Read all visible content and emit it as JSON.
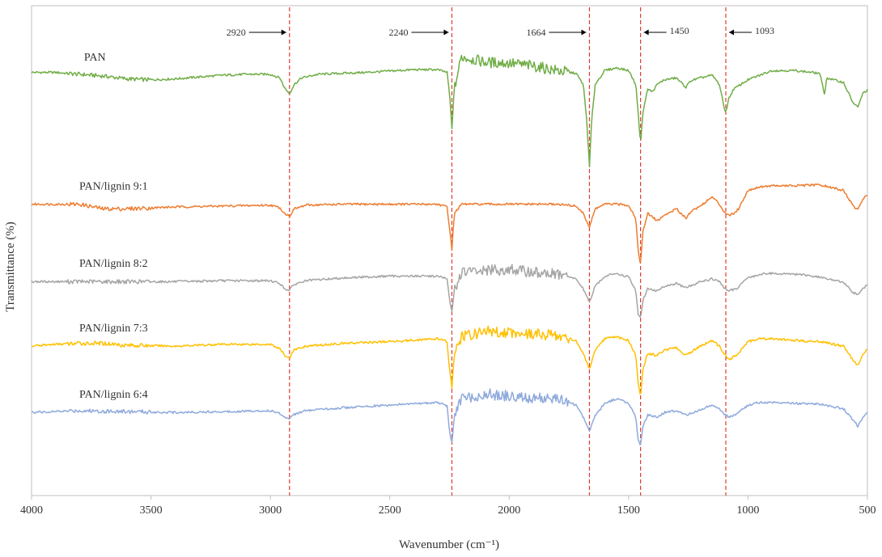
{
  "chart_data": {
    "type": "line",
    "title": "",
    "xlabel": "Wavenumber (cm⁻¹)",
    "ylabel": "Transmittance (%)",
    "xlim": [
      4000,
      500
    ],
    "x_reversed": true,
    "x_ticks": [
      4000,
      3500,
      3000,
      2500,
      2000,
      1500,
      1000,
      500
    ],
    "grid": false,
    "y_ticks_shown": false,
    "series": [
      {
        "name": "PAN",
        "color": "#70ad47",
        "label_x": 3780,
        "baseline": 14.0,
        "points": [
          [
            4000,
            0.3
          ],
          [
            3900,
            0.3
          ],
          [
            3800,
            0.1
          ],
          [
            3700,
            -0.1
          ],
          [
            3600,
            -0.4
          ],
          [
            3500,
            -0.5
          ],
          [
            3400,
            -0.4
          ],
          [
            3300,
            -0.2
          ],
          [
            3200,
            0
          ],
          [
            3100,
            0.1
          ],
          [
            3000,
            0.1
          ],
          [
            2960,
            -0.3
          ],
          [
            2940,
            -1.4
          ],
          [
            2920,
            -2.0
          ],
          [
            2900,
            -1.0
          ],
          [
            2870,
            -0.3
          ],
          [
            2800,
            0.1
          ],
          [
            2600,
            0.3
          ],
          [
            2400,
            0.6
          ],
          [
            2300,
            0.6
          ],
          [
            2260,
            0.3
          ],
          [
            2250,
            -2.0
          ],
          [
            2240,
            -5.8
          ],
          [
            2230,
            -1.5
          ],
          [
            2200,
            2.0
          ],
          [
            2100,
            1.4
          ],
          [
            2000,
            1.3
          ],
          [
            1900,
            1.0
          ],
          [
            1800,
            0.5
          ],
          [
            1720,
            0.2
          ],
          [
            1690,
            -1.0
          ],
          [
            1675,
            -5.0
          ],
          [
            1664,
            -10.0
          ],
          [
            1655,
            -5.0
          ],
          [
            1640,
            -1.0
          ],
          [
            1600,
            0.5
          ],
          [
            1550,
            0.8
          ],
          [
            1500,
            0.5
          ],
          [
            1470,
            -1.0
          ],
          [
            1460,
            -4.0
          ],
          [
            1450,
            -7.5
          ],
          [
            1440,
            -4.0
          ],
          [
            1420,
            -1.5
          ],
          [
            1400,
            -1.8
          ],
          [
            1380,
            -1.0
          ],
          [
            1350,
            -0.5
          ],
          [
            1300,
            -0.3
          ],
          [
            1260,
            -1.3
          ],
          [
            1240,
            -0.6
          ],
          [
            1200,
            -0.3
          ],
          [
            1150,
            0
          ],
          [
            1120,
            -1.0
          ],
          [
            1100,
            -3.5
          ],
          [
            1093,
            -4.0
          ],
          [
            1080,
            -2.5
          ],
          [
            1060,
            -1.5
          ],
          [
            1000,
            -0.5
          ],
          [
            950,
            0
          ],
          [
            900,
            0.5
          ],
          [
            800,
            0.5
          ],
          [
            700,
            0.2
          ],
          [
            680,
            -2.0
          ],
          [
            670,
            -0.3
          ],
          [
            600,
            -0.8
          ],
          [
            560,
            -3.0
          ],
          [
            540,
            -3.5
          ],
          [
            520,
            -2.0
          ],
          [
            500,
            -1.6
          ]
        ]
      },
      {
        "name": "PAN/lignin 9:1",
        "color": "#ed7d31",
        "label_x": 3800,
        "baseline": 0.0,
        "points": [
          [
            4000,
            0
          ],
          [
            3900,
            0
          ],
          [
            3800,
            0
          ],
          [
            3700,
            -0.5
          ],
          [
            3600,
            -0.5
          ],
          [
            3500,
            -0.4
          ],
          [
            3400,
            -0.3
          ],
          [
            3200,
            -0.2
          ],
          [
            3000,
            -0.1
          ],
          [
            2960,
            -0.4
          ],
          [
            2940,
            -1.0
          ],
          [
            2920,
            -1.3
          ],
          [
            2900,
            -0.5
          ],
          [
            2850,
            -0.1
          ],
          [
            2700,
            0
          ],
          [
            2500,
            0
          ],
          [
            2300,
            0
          ],
          [
            2260,
            -0.3
          ],
          [
            2250,
            -2.5
          ],
          [
            2240,
            -5.0
          ],
          [
            2230,
            -1.0
          ],
          [
            2200,
            0
          ],
          [
            2000,
            0
          ],
          [
            1800,
            0
          ],
          [
            1720,
            -0.2
          ],
          [
            1690,
            -1.0
          ],
          [
            1664,
            -2.5
          ],
          [
            1640,
            -0.5
          ],
          [
            1600,
            0
          ],
          [
            1550,
            0
          ],
          [
            1500,
            -0.1
          ],
          [
            1470,
            -1.5
          ],
          [
            1460,
            -5.0
          ],
          [
            1450,
            -6.5
          ],
          [
            1440,
            -3.0
          ],
          [
            1420,
            -1.0
          ],
          [
            1380,
            -1.8
          ],
          [
            1350,
            -1.2
          ],
          [
            1300,
            -0.5
          ],
          [
            1260,
            -1.5
          ],
          [
            1240,
            -0.8
          ],
          [
            1200,
            -0.2
          ],
          [
            1150,
            0.8
          ],
          [
            1120,
            0
          ],
          [
            1100,
            -0.8
          ],
          [
            1080,
            -1.2
          ],
          [
            1060,
            -1.0
          ],
          [
            1040,
            -0.5
          ],
          [
            1000,
            1.5
          ],
          [
            950,
            1.9
          ],
          [
            900,
            2.0
          ],
          [
            800,
            2.0
          ],
          [
            700,
            2.1
          ],
          [
            600,
            1.5
          ],
          [
            560,
            -0.2
          ],
          [
            540,
            -0.6
          ],
          [
            520,
            0.5
          ],
          [
            500,
            1.0
          ]
        ]
      },
      {
        "name": "PAN/lignin 8:2",
        "color": "#a5a5a5",
        "label_x": 3800,
        "baseline": -8.4,
        "points": [
          [
            4000,
            0
          ],
          [
            3800,
            0
          ],
          [
            3600,
            0
          ],
          [
            3400,
            0
          ],
          [
            3200,
            0.1
          ],
          [
            3000,
            0.1
          ],
          [
            2960,
            -0.2
          ],
          [
            2940,
            -0.8
          ],
          [
            2920,
            -0.9
          ],
          [
            2900,
            -0.3
          ],
          [
            2850,
            0.1
          ],
          [
            2700,
            0.4
          ],
          [
            2500,
            0.6
          ],
          [
            2300,
            0.6
          ],
          [
            2260,
            0.3
          ],
          [
            2250,
            -2.0
          ],
          [
            2240,
            -3.3
          ],
          [
            2230,
            -1.0
          ],
          [
            2200,
            1.0
          ],
          [
            2100,
            1.2
          ],
          [
            2000,
            1.3
          ],
          [
            1900,
            1.0
          ],
          [
            1800,
            0.8
          ],
          [
            1720,
            0.3
          ],
          [
            1690,
            -0.8
          ],
          [
            1664,
            -2.2
          ],
          [
            1640,
            -0.5
          ],
          [
            1600,
            0.6
          ],
          [
            1550,
            0.9
          ],
          [
            1500,
            0.5
          ],
          [
            1470,
            -1.0
          ],
          [
            1460,
            -3.5
          ],
          [
            1450,
            -4.0
          ],
          [
            1440,
            -2.0
          ],
          [
            1420,
            -0.8
          ],
          [
            1380,
            -1.0
          ],
          [
            1350,
            -0.5
          ],
          [
            1300,
            -0.2
          ],
          [
            1260,
            -0.7
          ],
          [
            1200,
            0
          ],
          [
            1150,
            0.3
          ],
          [
            1120,
            0
          ],
          [
            1100,
            -0.7
          ],
          [
            1080,
            -1.0
          ],
          [
            1050,
            -0.8
          ],
          [
            1000,
            0.4
          ],
          [
            950,
            0.8
          ],
          [
            900,
            0.9
          ],
          [
            800,
            0.8
          ],
          [
            700,
            0.5
          ],
          [
            600,
            -0.1
          ],
          [
            560,
            -1.2
          ],
          [
            540,
            -1.4
          ],
          [
            520,
            -0.8
          ],
          [
            500,
            -0.4
          ]
        ]
      },
      {
        "name": "PAN/lignin 7:3",
        "color": "#ffc000",
        "label_x": 3800,
        "baseline": -15.4,
        "points": [
          [
            4000,
            0
          ],
          [
            3900,
            0.2
          ],
          [
            3800,
            0.3
          ],
          [
            3700,
            0.3
          ],
          [
            3600,
            0.1
          ],
          [
            3400,
            0
          ],
          [
            3200,
            0.2
          ],
          [
            3000,
            0.2
          ],
          [
            2960,
            -0.3
          ],
          [
            2940,
            -1.0
          ],
          [
            2920,
            -1.3
          ],
          [
            2900,
            -0.4
          ],
          [
            2850,
            0
          ],
          [
            2700,
            0.3
          ],
          [
            2500,
            0.5
          ],
          [
            2300,
            0.8
          ],
          [
            2260,
            0.5
          ],
          [
            2250,
            -2.5
          ],
          [
            2240,
            -4.5
          ],
          [
            2230,
            -1.0
          ],
          [
            2200,
            1.0
          ],
          [
            2100,
            1.6
          ],
          [
            2000,
            1.5
          ],
          [
            1900,
            1.3
          ],
          [
            1800,
            1.2
          ],
          [
            1720,
            0.6
          ],
          [
            1690,
            -0.8
          ],
          [
            1664,
            -2.5
          ],
          [
            1640,
            -0.5
          ],
          [
            1600,
            0.8
          ],
          [
            1550,
            1.0
          ],
          [
            1500,
            0.6
          ],
          [
            1470,
            -1.0
          ],
          [
            1460,
            -4.0
          ],
          [
            1450,
            -5.6
          ],
          [
            1440,
            -2.5
          ],
          [
            1420,
            -0.8
          ],
          [
            1380,
            -1.0
          ],
          [
            1350,
            -0.4
          ],
          [
            1300,
            -0.2
          ],
          [
            1260,
            -1.0
          ],
          [
            1200,
            0
          ],
          [
            1150,
            0.6
          ],
          [
            1120,
            0
          ],
          [
            1100,
            -0.8
          ],
          [
            1080,
            -1.5
          ],
          [
            1050,
            -1.0
          ],
          [
            1000,
            0.5
          ],
          [
            950,
            0.8
          ],
          [
            900,
            0.8
          ],
          [
            800,
            0.6
          ],
          [
            700,
            0.5
          ],
          [
            600,
            0
          ],
          [
            560,
            -1.5
          ],
          [
            540,
            -2.1
          ],
          [
            520,
            -1.0
          ],
          [
            500,
            -0.3
          ]
        ]
      },
      {
        "name": "PAN/lignin 6:4",
        "color": "#8faadc",
        "label_x": 3800,
        "baseline": -22.6,
        "points": [
          [
            4000,
            0
          ],
          [
            3800,
            0.2
          ],
          [
            3600,
            0.1
          ],
          [
            3400,
            0
          ],
          [
            3200,
            0.1
          ],
          [
            3000,
            0.2
          ],
          [
            2960,
            -0.1
          ],
          [
            2940,
            -0.5
          ],
          [
            2920,
            -0.6
          ],
          [
            2900,
            -0.2
          ],
          [
            2850,
            0.2
          ],
          [
            2700,
            0.5
          ],
          [
            2500,
            0.8
          ],
          [
            2300,
            1.1
          ],
          [
            2260,
            0.7
          ],
          [
            2250,
            -2.0
          ],
          [
            2240,
            -3.3
          ],
          [
            2230,
            -0.5
          ],
          [
            2200,
            1.5
          ],
          [
            2100,
            2.0
          ],
          [
            2000,
            1.8
          ],
          [
            1900,
            1.5
          ],
          [
            1800,
            1.5
          ],
          [
            1720,
            0.8
          ],
          [
            1690,
            -0.5
          ],
          [
            1664,
            -2.0
          ],
          [
            1640,
            -0.3
          ],
          [
            1600,
            1.0
          ],
          [
            1550,
            1.5
          ],
          [
            1500,
            1.0
          ],
          [
            1470,
            -0.5
          ],
          [
            1460,
            -3.0
          ],
          [
            1450,
            -3.5
          ],
          [
            1440,
            -1.5
          ],
          [
            1420,
            -0.3
          ],
          [
            1380,
            -0.5
          ],
          [
            1350,
            0
          ],
          [
            1300,
            0.2
          ],
          [
            1260,
            -0.3
          ],
          [
            1200,
            0.3
          ],
          [
            1150,
            0.8
          ],
          [
            1120,
            0.4
          ],
          [
            1100,
            -0.2
          ],
          [
            1080,
            -0.5
          ],
          [
            1050,
            -0.2
          ],
          [
            1000,
            0.8
          ],
          [
            950,
            1.1
          ],
          [
            900,
            1.1
          ],
          [
            800,
            1.0
          ],
          [
            700,
            0.9
          ],
          [
            600,
            0.4
          ],
          [
            560,
            -0.8
          ],
          [
            540,
            -1.5
          ],
          [
            520,
            -0.6
          ],
          [
            500,
            0
          ]
        ]
      }
    ],
    "annotations": [
      {
        "label": "2920",
        "x": 2920,
        "arrow": "left-to-line"
      },
      {
        "label": "2240",
        "x": 2240,
        "arrow": "left-to-line"
      },
      {
        "label": "1664",
        "x": 1664,
        "arrow": "left-to-line"
      },
      {
        "label": "1450",
        "x": 1450,
        "arrow": "right-to-line"
      },
      {
        "label": "1093",
        "x": 1093,
        "arrow": "right-to-line"
      }
    ],
    "reference_line_color": "#e03c31"
  }
}
